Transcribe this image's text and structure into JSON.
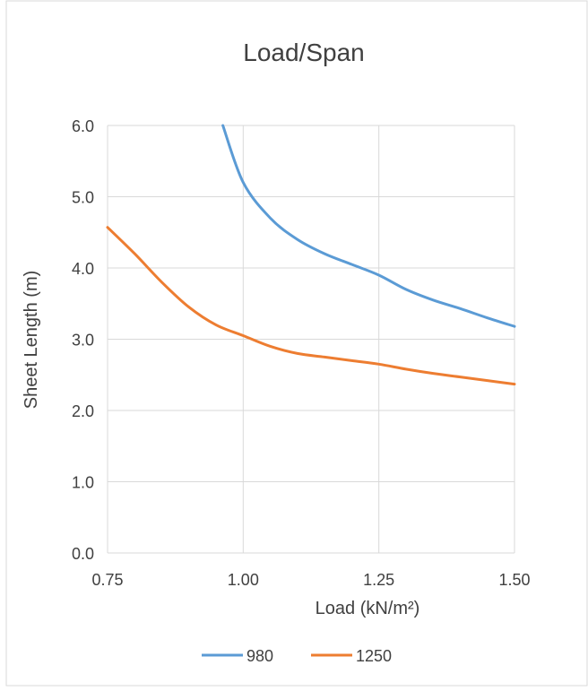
{
  "chart_data": {
    "type": "line",
    "title": "Load/Span",
    "xlabel": "Load (kN/m²)",
    "ylabel": "Sheet Length (m)",
    "xlim": [
      0.75,
      1.5
    ],
    "ylim": [
      0.0,
      6.0
    ],
    "x_ticks": [
      "0.75",
      "1.00",
      "1.25",
      "1.50"
    ],
    "y_ticks": [
      "0.0",
      "1.0",
      "2.0",
      "3.0",
      "4.0",
      "5.0",
      "6.0"
    ],
    "grid": true,
    "legend_position": "bottom",
    "series": [
      {
        "name": "980",
        "color": "#5b9bd5",
        "x": [
          0.9625,
          1.0,
          1.05,
          1.1,
          1.15,
          1.2,
          1.25,
          1.3,
          1.35,
          1.4,
          1.45,
          1.5
        ],
        "y": [
          6.0,
          5.2,
          4.7,
          4.4,
          4.2,
          4.05,
          3.9,
          3.7,
          3.55,
          3.43,
          3.3,
          3.18
        ]
      },
      {
        "name": "1250",
        "color": "#ed7d31",
        "x": [
          0.75,
          0.8,
          0.85,
          0.9,
          0.95,
          1.0,
          1.05,
          1.1,
          1.15,
          1.2,
          1.25,
          1.3,
          1.35,
          1.4,
          1.45,
          1.5
        ],
        "y": [
          4.57,
          4.2,
          3.8,
          3.45,
          3.2,
          3.05,
          2.9,
          2.8,
          2.75,
          2.7,
          2.65,
          2.58,
          2.52,
          2.47,
          2.42,
          2.37
        ]
      }
    ]
  }
}
